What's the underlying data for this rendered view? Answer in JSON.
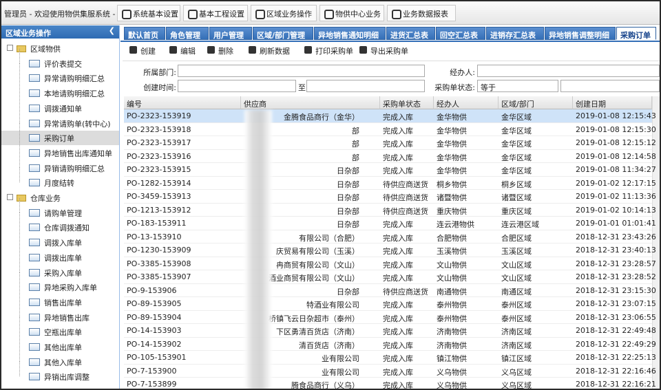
{
  "header": {
    "welcome": "管理员 - 欢迎使用物供集服系统 -",
    "menu": [
      "系统基本设置",
      "基本工程设置",
      "区域业务操作",
      "物供中心业务",
      "业务数据报表"
    ]
  },
  "sidebar": {
    "title": "区域业务操作",
    "groups": [
      {
        "label": "区域物供",
        "items": [
          "评价表提交",
          "异常请购明细汇总",
          "本地请购明细汇总",
          "调拨通知单",
          "异常请购单(转中心)",
          "采购订单",
          "异地销售出库通知单",
          "异销请购明细汇总",
          "月度结转"
        ]
      },
      {
        "label": "仓库业务",
        "items": [
          "请购单管理",
          "仓库调拨通知",
          "调拨入库单",
          "调拨出库单",
          "采购入库单",
          "异地采购入库单",
          "销售出库单",
          "异地销售出库",
          "空瓶出库单",
          "其他出库单",
          "其他入库单",
          "异销出库调整"
        ]
      }
    ]
  },
  "tabs": [
    "默认首页",
    "角色管理",
    "用户管理",
    "区域/部门管理",
    "异地销售通知明细",
    "进货汇总表",
    "回空汇总表",
    "进销存汇总表",
    "异地销售调整明细",
    "采购订单"
  ],
  "toolbar": [
    "创建",
    "编辑",
    "删除",
    "刷新数据",
    "打印采购单",
    "导出采购单"
  ],
  "filters": {
    "department": "所属部门:",
    "handler": "经办人:",
    "created": "创建时间:",
    "to": "至",
    "status": "采购单状态:",
    "operator": "等于"
  },
  "table": {
    "columns": [
      "编号",
      "供应商",
      "采购单状态",
      "经办人",
      "区域/部门",
      "创建日期"
    ],
    "rows": [
      [
        "PO-2323-153919",
        "金腾食品商行（金华）",
        "完成入库",
        "金华物供",
        "金华区域",
        "2019-01-08 12:15:43"
      ],
      [
        "PO-2323-153918",
        "部",
        "完成入库",
        "金华物供",
        "金华区域",
        "2019-01-08 12:15:30"
      ],
      [
        "PO-2323-153917",
        "部",
        "完成入库",
        "金华物供",
        "金华区域",
        "2019-01-08 12:15:12"
      ],
      [
        "PO-2323-153916",
        "部",
        "完成入库",
        "金华物供",
        "金华区域",
        "2019-01-08 12:14:58"
      ],
      [
        "PO-2323-153915",
        "日杂部",
        "完成入库",
        "金华物供",
        "金华区域",
        "2019-01-08 11:34:27"
      ],
      [
        "PO-1282-153914",
        "日杂部",
        "待供应商送货",
        "桐乡物供",
        "桐乡区域",
        "2019-01-02 12:17:15"
      ],
      [
        "PO-3459-153913",
        "日杂部",
        "待供应商送货",
        "诸暨物供",
        "诸暨区域",
        "2019-01-02 11:13:36"
      ],
      [
        "PO-1213-153912",
        "日杂部",
        "待供应商送货",
        "重庆物供",
        "重庆区域",
        "2019-01-02 10:14:13"
      ],
      [
        "PO-183-153911",
        "日杂部",
        "完成入库",
        "连云港物供",
        "连云港区域",
        "2019-01-01 01:01:41"
      ],
      [
        "PO-13-153910",
        "有限公司（合肥）",
        "完成入库",
        "合肥物供",
        "合肥区域",
        "2018-12-31 23:43:26"
      ],
      [
        "PO-1230-153909",
        "庆贸易有限公司（玉溪）",
        "完成入库",
        "玉溪物供",
        "玉溪区域",
        "2018-12-31 23:40:13"
      ],
      [
        "PO-3385-153908",
        "冉商贸有限公司（文山）",
        "完成入库",
        "文山物供",
        "文山区域",
        "2018-12-31 23:28:57"
      ],
      [
        "PO-3385-153907",
        "酒业商贸有限公司（文山）",
        "完成入库",
        "文山物供",
        "文山区域",
        "2018-12-31 23:28:52"
      ],
      [
        "PO-9-153906",
        "日杂部",
        "待供应商送货",
        "南通物供",
        "南通区域",
        "2018-12-31 23:15:30"
      ],
      [
        "PO-89-153905",
        "特酒业有限公司",
        "完成入库",
        "泰州物供",
        "泰州区域",
        "2018-12-31 23:07:15"
      ],
      [
        "PO-89-153904",
        "桥镇飞云日杂超市（泰州）",
        "完成入库",
        "泰州物供",
        "泰州区域",
        "2018-12-31 23:06:55"
      ],
      [
        "PO-14-153903",
        "下区勇清百货店（济南）",
        "完成入库",
        "济南物供",
        "济南区域",
        "2018-12-31 22:49:48"
      ],
      [
        "PO-14-153902",
        "清百货店（济南）",
        "完成入库",
        "济南物供",
        "济南区域",
        "2018-12-31 22:49:29"
      ],
      [
        "PO-105-153901",
        "业有限公司",
        "完成入库",
        "镇江物供",
        "镇江区域",
        "2018-12-31 22:25:13"
      ],
      [
        "PO-7-153900",
        "业有限公司",
        "完成入库",
        "义乌物供",
        "义乌区域",
        "2018-12-31 22:16:46"
      ],
      [
        "PO-7-153899",
        "腾食品商行（义乌）",
        "完成入库",
        "义乌物供",
        "义乌区域",
        "2018-12-31 22:16:21"
      ]
    ]
  }
}
